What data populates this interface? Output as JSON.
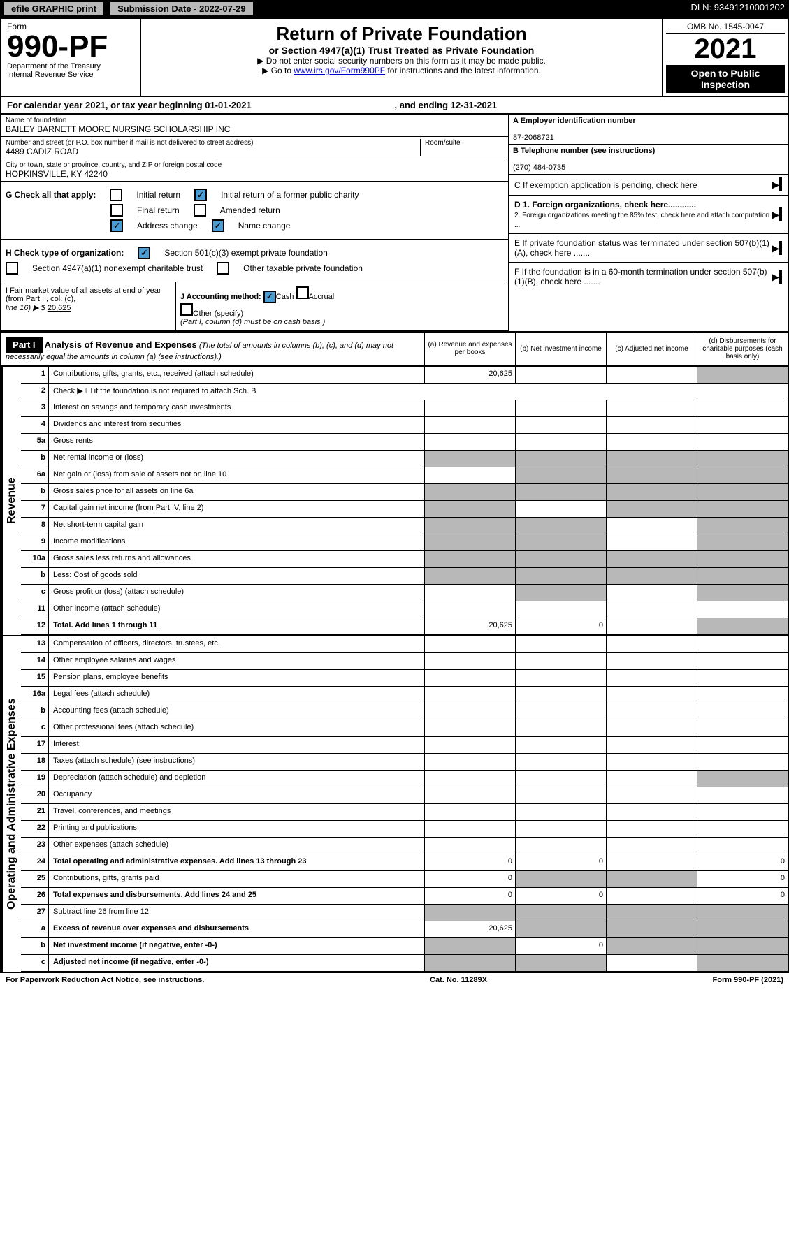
{
  "header": {
    "efile": "efile GRAPHIC print",
    "submission_label": "Submission Date - 2022-07-29",
    "dln": "DLN: 93491210001202"
  },
  "form": {
    "label": "Form",
    "number": "990-PF",
    "dept": "Department of the Treasury",
    "irs": "Internal Revenue Service",
    "title": "Return of Private Foundation",
    "subtitle": "or Section 4947(a)(1) Trust Treated as Private Foundation",
    "instr1": "▶ Do not enter social security numbers on this form as it may be made public.",
    "instr2_prefix": "▶ Go to ",
    "instr2_link": "www.irs.gov/Form990PF",
    "instr2_suffix": " for instructions and the latest information.",
    "omb": "OMB No. 1545-0047",
    "year": "2021",
    "inspection": "Open to Public Inspection"
  },
  "calendar": {
    "text": "For calendar year 2021, or tax year beginning 01-01-2021",
    "ending": ", and ending 12-31-2021"
  },
  "foundation": {
    "name_label": "Name of foundation",
    "name": "BAILEY BARNETT MOORE NURSING SCHOLARSHIP INC",
    "addr_label": "Number and street (or P.O. box number if mail is not delivered to street address)",
    "addr": "4489 CADIZ ROAD",
    "room_label": "Room/suite",
    "city_label": "City or town, state or province, country, and ZIP or foreign postal code",
    "city": "HOPKINSVILLE, KY  42240",
    "ein_label": "A Employer identification number",
    "ein": "87-2068721",
    "phone_label": "B Telephone number (see instructions)",
    "phone": "(270) 484-0735"
  },
  "section_c": "C If exemption application is pending, check here",
  "section_d1": "D 1. Foreign organizations, check here............",
  "section_d2": "2. Foreign organizations meeting the 85% test, check here and attach computation ...",
  "section_e": "E  If private foundation status was terminated under section 507(b)(1)(A), check here .......",
  "section_f": "F  If the foundation is in a 60-month termination under section 507(b)(1)(B), check here .......",
  "section_g": {
    "label": "G Check all that apply:",
    "initial": "Initial return",
    "initial_former": "Initial return of a former public charity",
    "final": "Final return",
    "amended": "Amended return",
    "address": "Address change",
    "name": "Name change"
  },
  "section_h": {
    "label": "H Check type of organization:",
    "opt1": "Section 501(c)(3) exempt private foundation",
    "opt2": "Section 4947(a)(1) nonexempt charitable trust",
    "opt3": "Other taxable private foundation"
  },
  "section_i": {
    "label": "I Fair market value of all assets at end of year (from Part II, col. (c),",
    "line": "line 16) ▶ $",
    "value": "20,625"
  },
  "section_j": {
    "label": "J Accounting method:",
    "cash": "Cash",
    "accrual": "Accrual",
    "other": "Other (specify)",
    "note": "(Part I, column (d) must be on cash basis.)"
  },
  "part1": {
    "header": "Part I",
    "title": "Analysis of Revenue and Expenses",
    "desc": "(The total of amounts in columns (b), (c), and (d) may not necessarily equal the amounts in column (a) (see instructions).)",
    "col_a": "(a)   Revenue and expenses per books",
    "col_b": "(b)   Net investment income",
    "col_c": "(c)   Adjusted net income",
    "col_d": "(d)   Disbursements for charitable purposes (cash basis only)"
  },
  "side_labels": {
    "revenue": "Revenue",
    "expenses": "Operating and Administrative Expenses"
  },
  "lines": [
    {
      "n": "1",
      "d": "Contributions, gifts, grants, etc., received (attach schedule)",
      "a": "20,625",
      "grey": [
        "d"
      ]
    },
    {
      "n": "2",
      "d": "Check ▶ ☐ if the foundation is not required to attach Sch. B",
      "nocells": true
    },
    {
      "n": "3",
      "d": "Interest on savings and temporary cash investments"
    },
    {
      "n": "4",
      "d": "Dividends and interest from securities"
    },
    {
      "n": "5a",
      "d": "Gross rents"
    },
    {
      "n": "b",
      "d": "Net rental income or (loss)",
      "grey": [
        "a",
        "b",
        "c",
        "d"
      ]
    },
    {
      "n": "6a",
      "d": "Net gain or (loss) from sale of assets not on line 10",
      "grey": [
        "b",
        "c",
        "d"
      ]
    },
    {
      "n": "b",
      "d": "Gross sales price for all assets on line 6a",
      "grey": [
        "a",
        "b",
        "c",
        "d"
      ]
    },
    {
      "n": "7",
      "d": "Capital gain net income (from Part IV, line 2)",
      "grey": [
        "a",
        "c",
        "d"
      ]
    },
    {
      "n": "8",
      "d": "Net short-term capital gain",
      "grey": [
        "a",
        "b",
        "d"
      ]
    },
    {
      "n": "9",
      "d": "Income modifications",
      "grey": [
        "a",
        "b",
        "d"
      ]
    },
    {
      "n": "10a",
      "d": "Gross sales less returns and allowances",
      "grey": [
        "a",
        "b",
        "c",
        "d"
      ]
    },
    {
      "n": "b",
      "d": "Less: Cost of goods sold",
      "grey": [
        "a",
        "b",
        "c",
        "d"
      ]
    },
    {
      "n": "c",
      "d": "Gross profit or (loss) (attach schedule)",
      "grey": [
        "b",
        "d"
      ]
    },
    {
      "n": "11",
      "d": "Other income (attach schedule)"
    },
    {
      "n": "12",
      "d": "Total. Add lines 1 through 11",
      "bold": true,
      "a": "20,625",
      "b": "0",
      "grey": [
        "d"
      ]
    }
  ],
  "exp_lines": [
    {
      "n": "13",
      "d": "Compensation of officers, directors, trustees, etc."
    },
    {
      "n": "14",
      "d": "Other employee salaries and wages"
    },
    {
      "n": "15",
      "d": "Pension plans, employee benefits"
    },
    {
      "n": "16a",
      "d": "Legal fees (attach schedule)"
    },
    {
      "n": "b",
      "d": "Accounting fees (attach schedule)"
    },
    {
      "n": "c",
      "d": "Other professional fees (attach schedule)"
    },
    {
      "n": "17",
      "d": "Interest"
    },
    {
      "n": "18",
      "d": "Taxes (attach schedule) (see instructions)"
    },
    {
      "n": "19",
      "d": "Depreciation (attach schedule) and depletion",
      "grey": [
        "d"
      ]
    },
    {
      "n": "20",
      "d": "Occupancy"
    },
    {
      "n": "21",
      "d": "Travel, conferences, and meetings"
    },
    {
      "n": "22",
      "d": "Printing and publications"
    },
    {
      "n": "23",
      "d": "Other expenses (attach schedule)"
    },
    {
      "n": "24",
      "d": "Total operating and administrative expenses. Add lines 13 through 23",
      "bold": true,
      "a": "0",
      "b": "0",
      "dval": "0"
    },
    {
      "n": "25",
      "d": "Contributions, gifts, grants paid",
      "a": "0",
      "grey": [
        "b",
        "c"
      ],
      "dval": "0"
    },
    {
      "n": "26",
      "d": "Total expenses and disbursements. Add lines 24 and 25",
      "bold": true,
      "a": "0",
      "b": "0",
      "dval": "0"
    },
    {
      "n": "27",
      "d": "Subtract line 26 from line 12:",
      "grey": [
        "a",
        "b",
        "c",
        "d"
      ]
    },
    {
      "n": "a",
      "d": "Excess of revenue over expenses and disbursements",
      "bold": true,
      "a": "20,625",
      "grey": [
        "b",
        "c",
        "d"
      ]
    },
    {
      "n": "b",
      "d": "Net investment income (if negative, enter -0-)",
      "bold": true,
      "b": "0",
      "grey": [
        "a",
        "c",
        "d"
      ]
    },
    {
      "n": "c",
      "d": "Adjusted net income (if negative, enter -0-)",
      "bold": true,
      "grey": [
        "a",
        "b",
        "d"
      ]
    }
  ],
  "footer": {
    "left": "For Paperwork Reduction Act Notice, see instructions.",
    "mid": "Cat. No. 11289X",
    "right": "Form 990-PF (2021)"
  }
}
